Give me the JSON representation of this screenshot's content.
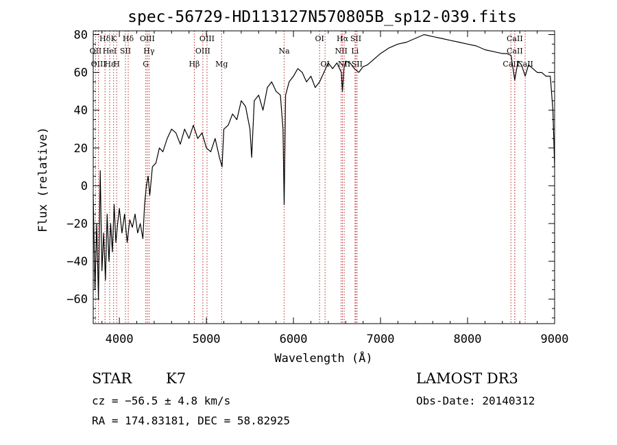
{
  "chart_data": {
    "type": "line",
    "title": "spec-56729-HD113127N570805B_sp12-039.fits",
    "xlabel": "Wavelength (Å)",
    "ylabel": "Flux (relative)",
    "xlim": [
      3700,
      9000
    ],
    "ylim": [
      -73,
      82
    ],
    "x_ticks": [
      4000,
      5000,
      6000,
      7000,
      8000,
      9000
    ],
    "x_tick_labels": [
      "4000",
      "5000",
      "6000",
      "7000",
      "8000",
      "9000"
    ],
    "y_ticks": [
      -60,
      -40,
      -20,
      0,
      20,
      40,
      60,
      80
    ],
    "y_tick_labels": [
      "−60",
      "−40",
      "−20",
      "0",
      "20",
      "40",
      "60",
      "80"
    ],
    "line_color": "#000000",
    "marker_color": "#b22222",
    "grid": false,
    "series": [
      {
        "x": [
          3700,
          3720,
          3740,
          3760,
          3780,
          3800,
          3820,
          3840,
          3860,
          3880,
          3900,
          3920,
          3940,
          3960,
          3980,
          4000,
          4030,
          4060,
          4090,
          4120,
          4150,
          4180,
          4210,
          4240,
          4270,
          4290,
          4310,
          4330,
          4350,
          4380,
          4420,
          4460,
          4500,
          4550,
          4600,
          4650,
          4700,
          4750,
          4800,
          4850,
          4900,
          4950,
          5000,
          5050,
          5100,
          5150,
          5180,
          5200,
          5250,
          5300,
          5350,
          5400,
          5450,
          5500,
          5520,
          5550,
          5600,
          5650,
          5700,
          5750,
          5800,
          5850,
          5880,
          5893,
          5910,
          5950,
          6000,
          6050,
          6100,
          6150,
          6200,
          6250,
          6300,
          6350,
          6400,
          6450,
          6500,
          6550,
          6563,
          6580,
          6600,
          6650,
          6700,
          6750,
          6800,
          6850,
          6900,
          6950,
          7000,
          7100,
          7200,
          7300,
          7400,
          7500,
          7600,
          7700,
          7800,
          7900,
          8000,
          8100,
          8200,
          8300,
          8400,
          8450,
          8500,
          8542,
          8580,
          8620,
          8662,
          8700,
          8750,
          8800,
          8850,
          8900,
          8950,
          8980,
          9000
        ],
        "y": [
          -5,
          -55,
          -20,
          -60,
          8,
          -45,
          -25,
          -50,
          -15,
          -40,
          -20,
          -35,
          -10,
          -30,
          -20,
          -12,
          -25,
          -15,
          -30,
          -18,
          -22,
          -15,
          -25,
          -20,
          -28,
          -10,
          0,
          5,
          -5,
          10,
          12,
          20,
          18,
          25,
          30,
          28,
          22,
          30,
          25,
          32,
          25,
          28,
          20,
          18,
          25,
          15,
          10,
          30,
          32,
          38,
          35,
          45,
          42,
          30,
          15,
          45,
          48,
          40,
          52,
          55,
          50,
          48,
          30,
          -10,
          48,
          55,
          58,
          62,
          60,
          55,
          58,
          52,
          55,
          60,
          65,
          62,
          65,
          60,
          50,
          62,
          66,
          65,
          62,
          60,
          63,
          64,
          66,
          68,
          70,
          73,
          75,
          76,
          78,
          80,
          79,
          78,
          77,
          76,
          75,
          74,
          72,
          71,
          70,
          70,
          69,
          56,
          66,
          64,
          58,
          64,
          62,
          60,
          60,
          58,
          58,
          40,
          10
        ]
      }
    ],
    "line_markers": [
      {
        "label": "Hδ",
        "x": 3835,
        "row": 0
      },
      {
        "label": "OII",
        "x": 3727,
        "row": 1
      },
      {
        "label": "OIII",
        "x": 3760,
        "row": 2
      },
      {
        "label": "Hε",
        "x": 3889,
        "row": 2
      },
      {
        "label": "HeI",
        "x": 3889,
        "row": 1
      },
      {
        "label": "K",
        "x": 3934,
        "row": 0
      },
      {
        "label": "H",
        "x": 3969,
        "row": 2
      },
      {
        "label": "SII",
        "x": 4070,
        "row": 1
      },
      {
        "label": "Hδ",
        "x": 4102,
        "row": 0
      },
      {
        "label": "OIII",
        "x": 4321,
        "row": 0
      },
      {
        "label": "Hγ",
        "x": 4341,
        "row": 1
      },
      {
        "label": "G",
        "x": 4304,
        "row": 2
      },
      {
        "label": "Hβ",
        "x": 4861,
        "row": 2
      },
      {
        "label": "OIII",
        "x": 4959,
        "row": 1
      },
      {
        "label": "OIII",
        "x": 5007,
        "row": 0
      },
      {
        "label": "Mg",
        "x": 5175,
        "row": 2
      },
      {
        "label": "Na",
        "x": 5893,
        "row": 1
      },
      {
        "label": "OI",
        "x": 6300,
        "row": 0
      },
      {
        "label": "OI",
        "x": 6363,
        "row": 2
      },
      {
        "label": "NII",
        "x": 6548,
        "row": 1
      },
      {
        "label": "Hα",
        "x": 6563,
        "row": 0
      },
      {
        "label": "NII",
        "x": 6583,
        "row": 2
      },
      {
        "label": "Li",
        "x": 6707,
        "row": 1
      },
      {
        "label": "SII",
        "x": 6716,
        "row": 0
      },
      {
        "label": "SII",
        "x": 6731,
        "row": 2
      },
      {
        "label": "CaII",
        "x": 8498,
        "row": 2
      },
      {
        "label": "CaII",
        "x": 8542,
        "row": 1
      },
      {
        "label": "CaII",
        "x": 8542,
        "row": 0
      },
      {
        "label": "CaII",
        "x": 8662,
        "row": 2
      }
    ]
  },
  "info": {
    "object_type": "STAR",
    "subclass": "K7",
    "survey": "LAMOST DR3",
    "cz": "cz = −56.5 ± 4.8 km/s",
    "obs_date": "Obs-Date: 20140312",
    "coords": "RA = 174.83181, DEC =  58.82925"
  }
}
